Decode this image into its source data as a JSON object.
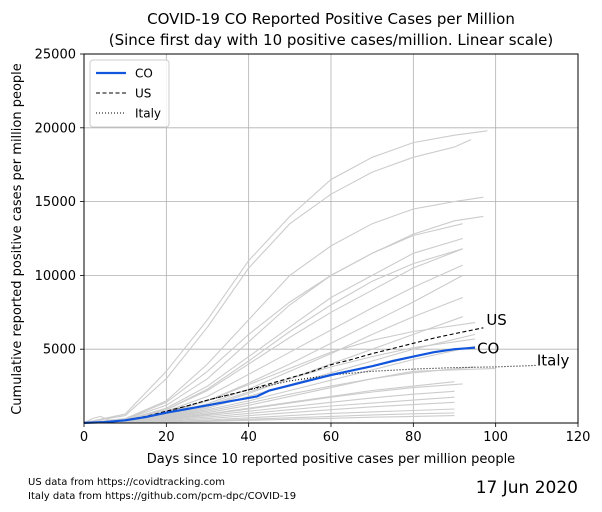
{
  "chart_data": {
    "type": "line",
    "title_line1": "COVID-19 CO Reported Positive Cases per Million",
    "title_line2": "(Since first day with 10 positive cases/million. Linear scale)",
    "xlabel": "Days since 10 reported positive cases per million people",
    "ylabel": "Cumulative reported positive cases per million people",
    "xlim": [
      0,
      120
    ],
    "ylim": [
      0,
      25000
    ],
    "x_ticks": [
      0,
      20,
      40,
      60,
      80,
      100,
      120
    ],
    "y_ticks": [
      5000,
      10000,
      15000,
      20000,
      25000
    ],
    "grid": true,
    "legend_position": "top-left",
    "date": "17 Jun 2020",
    "footnote_line1": "US data from https://covidtracking.com",
    "footnote_line2": "Italy data from https://github.com/pcm-dpc/COVID-19",
    "colors": {
      "co": "#1155dd",
      "background_states": "#cccccc",
      "reference": "#000000",
      "grid": "#b0b0b0"
    },
    "series": [
      {
        "name": "CO",
        "style": "solid",
        "end_label": "CO",
        "x": [
          0,
          5,
          10,
          15,
          20,
          25,
          30,
          35,
          40,
          42,
          45,
          50,
          55,
          60,
          65,
          70,
          75,
          80,
          85,
          90,
          95
        ],
        "y": [
          10,
          60,
          180,
          400,
          700,
          950,
          1200,
          1450,
          1700,
          1800,
          2200,
          2550,
          2900,
          3250,
          3550,
          3850,
          4200,
          4500,
          4800,
          5000,
          5100
        ]
      },
      {
        "name": "US",
        "style": "dashed",
        "end_label": "US",
        "x": [
          0,
          5,
          10,
          15,
          20,
          25,
          30,
          35,
          40,
          45,
          50,
          55,
          60,
          65,
          70,
          75,
          80,
          85,
          90,
          97
        ],
        "y": [
          10,
          70,
          200,
          450,
          800,
          1150,
          1550,
          1900,
          2250,
          2650,
          3050,
          3450,
          3950,
          4300,
          4700,
          5050,
          5400,
          5750,
          6050,
          6450
        ]
      },
      {
        "name": "Italy",
        "style": "dotted",
        "end_label": "Italy",
        "x": [
          0,
          5,
          10,
          15,
          20,
          25,
          30,
          35,
          40,
          45,
          50,
          55,
          60,
          70,
          80,
          90,
          100,
          110
        ],
        "y": [
          10,
          60,
          180,
          420,
          750,
          1150,
          1550,
          1900,
          2250,
          2550,
          2850,
          3050,
          3250,
          3500,
          3650,
          3750,
          3800,
          3900
        ]
      }
    ],
    "background_series": [
      {
        "x": [
          0,
          10,
          20,
          30,
          40,
          50,
          60,
          70,
          80,
          90,
          98
        ],
        "y": [
          20,
          600,
          3500,
          7000,
          11000,
          14000,
          16500,
          18000,
          19000,
          19500,
          19800
        ]
      },
      {
        "x": [
          0,
          10,
          20,
          30,
          40,
          50,
          60,
          70,
          80,
          90,
          94
        ],
        "y": [
          20,
          500,
          3000,
          6500,
          10500,
          13500,
          15500,
          17000,
          18000,
          18700,
          19200
        ]
      },
      {
        "x": [
          0,
          10,
          20,
          30,
          40,
          50,
          60,
          70,
          80,
          90,
          97
        ],
        "y": [
          10,
          300,
          1500,
          4000,
          7000,
          10000,
          12000,
          13500,
          14500,
          15000,
          15300
        ]
      },
      {
        "x": [
          0,
          10,
          20,
          30,
          40,
          50,
          60,
          70,
          80,
          90,
          97
        ],
        "y": [
          10,
          250,
          1200,
          3000,
          5500,
          8000,
          10000,
          11500,
          12800,
          13700,
          14000
        ]
      },
      {
        "x": [
          0,
          10,
          20,
          30,
          40,
          50,
          60,
          70,
          80,
          92
        ],
        "y": [
          10,
          200,
          1000,
          2500,
          4500,
          6500,
          8500,
          10000,
          11500,
          12500
        ]
      },
      {
        "x": [
          0,
          10,
          20,
          30,
          40,
          50,
          60,
          70,
          80,
          92
        ],
        "y": [
          10,
          200,
          900,
          2200,
          4000,
          5800,
          7500,
          9000,
          10500,
          11800
        ]
      },
      {
        "x": [
          0,
          10,
          20,
          30,
          40,
          50,
          60,
          70,
          80,
          92
        ],
        "y": [
          10,
          150,
          800,
          1800,
          3300,
          4800,
          6300,
          7800,
          9200,
          10700
        ]
      },
      {
        "x": [
          0,
          10,
          20,
          30,
          40,
          50,
          60,
          70,
          80,
          92
        ],
        "y": [
          10,
          150,
          700,
          1500,
          2700,
          4000,
          5400,
          6800,
          8200,
          10000
        ]
      },
      {
        "x": [
          0,
          10,
          20,
          30,
          40,
          50,
          60,
          70,
          80,
          92
        ],
        "y": [
          10,
          130,
          600,
          1300,
          2300,
          3500,
          4700,
          6000,
          7200,
          8500
        ]
      },
      {
        "x": [
          0,
          10,
          20,
          30,
          40,
          50,
          60,
          70,
          80,
          92
        ],
        "y": [
          10,
          120,
          500,
          1100,
          2000,
          3000,
          4000,
          5000,
          6000,
          7200
        ]
      },
      {
        "x": [
          0,
          10,
          20,
          30,
          40,
          50,
          60,
          70,
          80,
          95
        ],
        "y": [
          10,
          100,
          450,
          1000,
          1800,
          2600,
          3400,
          4200,
          5000,
          6000
        ]
      },
      {
        "x": [
          0,
          10,
          20,
          30,
          40,
          50,
          60,
          70,
          80,
          95
        ],
        "y": [
          10,
          100,
          400,
          900,
          1500,
          2200,
          2900,
          3600,
          4300,
          5200
        ]
      },
      {
        "x": [
          0,
          10,
          20,
          30,
          40,
          50,
          60,
          70,
          80,
          100
        ],
        "y": [
          10,
          80,
          350,
          700,
          1200,
          1800,
          2400,
          3000,
          3500,
          3700
        ]
      },
      {
        "x": [
          0,
          10,
          20,
          30,
          40,
          50,
          60,
          70,
          80,
          90
        ],
        "y": [
          10,
          80,
          300,
          600,
          1000,
          1400,
          1800,
          2200,
          2500,
          2800
        ]
      },
      {
        "x": [
          0,
          10,
          20,
          30,
          40,
          50,
          60,
          70,
          80,
          90
        ],
        "y": [
          10,
          60,
          250,
          500,
          800,
          1100,
          1400,
          1700,
          1950,
          2150
        ]
      },
      {
        "x": [
          0,
          10,
          20,
          30,
          40,
          50,
          60,
          70,
          80,
          90
        ],
        "y": [
          10,
          50,
          200,
          400,
          650,
          900,
          1150,
          1350,
          1550,
          1750
        ]
      },
      {
        "x": [
          0,
          10,
          20,
          30,
          40,
          50,
          60,
          70,
          80,
          90
        ],
        "y": [
          10,
          40,
          150,
          300,
          500,
          700,
          900,
          1100,
          1250,
          1400
        ]
      },
      {
        "x": [
          0,
          10,
          20,
          30,
          40,
          50,
          60,
          70,
          80,
          90
        ],
        "y": [
          10,
          30,
          100,
          200,
          350,
          500,
          650,
          750,
          850,
          950
        ]
      },
      {
        "x": [
          0,
          10,
          20,
          30,
          40,
          50,
          60,
          70,
          80,
          90
        ],
        "y": [
          10,
          25,
          80,
          150,
          250,
          350,
          450,
          550,
          620,
          680
        ]
      },
      {
        "x": [
          0,
          10,
          20,
          30,
          40,
          50,
          60,
          70,
          80,
          90
        ],
        "y": [
          10,
          20,
          60,
          110,
          180,
          250,
          320,
          390,
          450,
          500
        ]
      },
      {
        "x": [
          0,
          10,
          20,
          30,
          40,
          50,
          60,
          70,
          80,
          92
        ],
        "y": [
          10,
          250,
          1400,
          3500,
          6000,
          8200,
          10000,
          11500,
          12700,
          13500
        ]
      },
      {
        "x": [
          0,
          10,
          20,
          30,
          40,
          50,
          60,
          70,
          80,
          92
        ],
        "y": [
          10,
          180,
          900,
          2300,
          4200,
          6200,
          8000,
          9600,
          10800,
          11800
        ]
      },
      {
        "x": [
          0,
          10,
          20,
          30,
          40,
          50,
          60,
          70,
          80,
          95
        ],
        "y": [
          10,
          140,
          650,
          1500,
          2600,
          3700,
          4800,
          5600,
          6200,
          6800
        ]
      },
      {
        "x": [
          0,
          10,
          20,
          30,
          40,
          50,
          60,
          70,
          80,
          95
        ],
        "y": [
          10,
          120,
          550,
          1200,
          2100,
          3000,
          3800,
          4500,
          5100,
          5700
        ]
      },
      {
        "x": [
          0,
          10,
          20,
          30,
          40,
          50,
          60,
          70,
          80,
          95
        ],
        "y": [
          10,
          90,
          380,
          800,
          1350,
          1950,
          2500,
          3000,
          3400,
          3800
        ]
      },
      {
        "x": [
          0,
          10,
          20,
          30,
          40,
          50,
          60,
          70,
          80,
          92
        ],
        "y": [
          10,
          70,
          280,
          580,
          950,
          1350,
          1750,
          2100,
          2400,
          2650
        ]
      },
      {
        "x": [
          0,
          2,
          4,
          6,
          8,
          10,
          15,
          20
        ],
        "y": [
          10,
          300,
          450,
          200,
          150,
          100,
          200,
          350
        ]
      }
    ]
  }
}
